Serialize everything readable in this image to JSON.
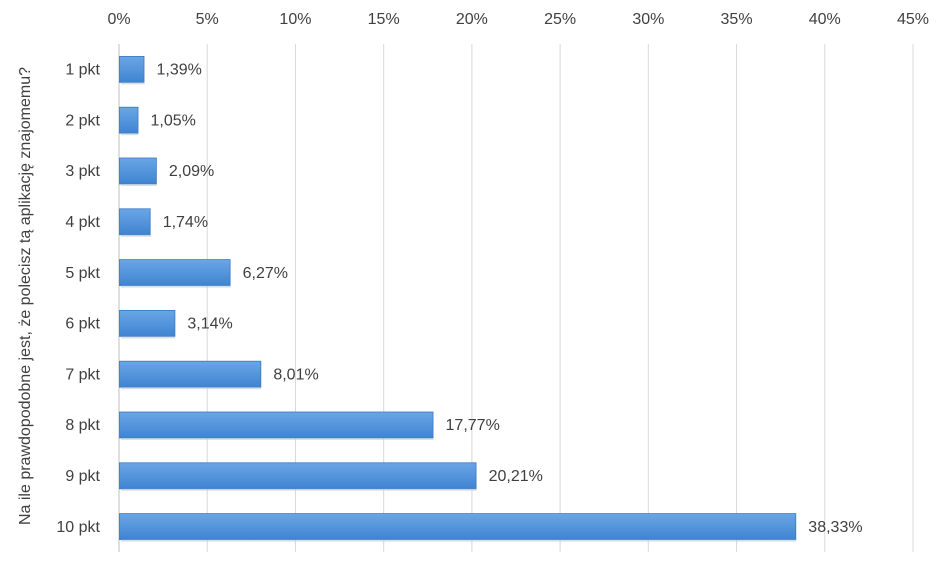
{
  "chart_data": {
    "type": "bar",
    "orientation": "horizontal",
    "title": "",
    "xlabel": "",
    "ylabel": "Na ile prawdopodobne jest, że polecisz tą aplikację znajomemu?",
    "categories": [
      "1 pkt",
      "2 pkt",
      "3 pkt",
      "4 pkt",
      "5 pkt",
      "6 pkt",
      "7 pkt",
      "8 pkt",
      "9 pkt",
      "10 pkt"
    ],
    "values": [
      1.39,
      1.05,
      2.09,
      1.74,
      6.27,
      3.14,
      8.01,
      17.77,
      20.21,
      38.33
    ],
    "data_labels": [
      "1,39%",
      "1,05%",
      "2,09%",
      "1,74%",
      "6,27%",
      "3,14%",
      "8,01%",
      "17,77%",
      "20,21%",
      "38,33%"
    ],
    "xlim": [
      0,
      45
    ],
    "x_ticks": [
      0,
      5,
      10,
      15,
      20,
      25,
      30,
      35,
      40,
      45
    ],
    "x_tick_labels": [
      "0%",
      "5%",
      "10%",
      "15%",
      "20%",
      "25%",
      "30%",
      "35%",
      "40%",
      "45%"
    ],
    "x_axis_position": "top",
    "grid": true,
    "legend": "none",
    "bar_color": "#4a8fd8",
    "bar_edge_color": "#3a78c2",
    "grid_color": "#d9d9d9",
    "text_color": "#404040"
  }
}
